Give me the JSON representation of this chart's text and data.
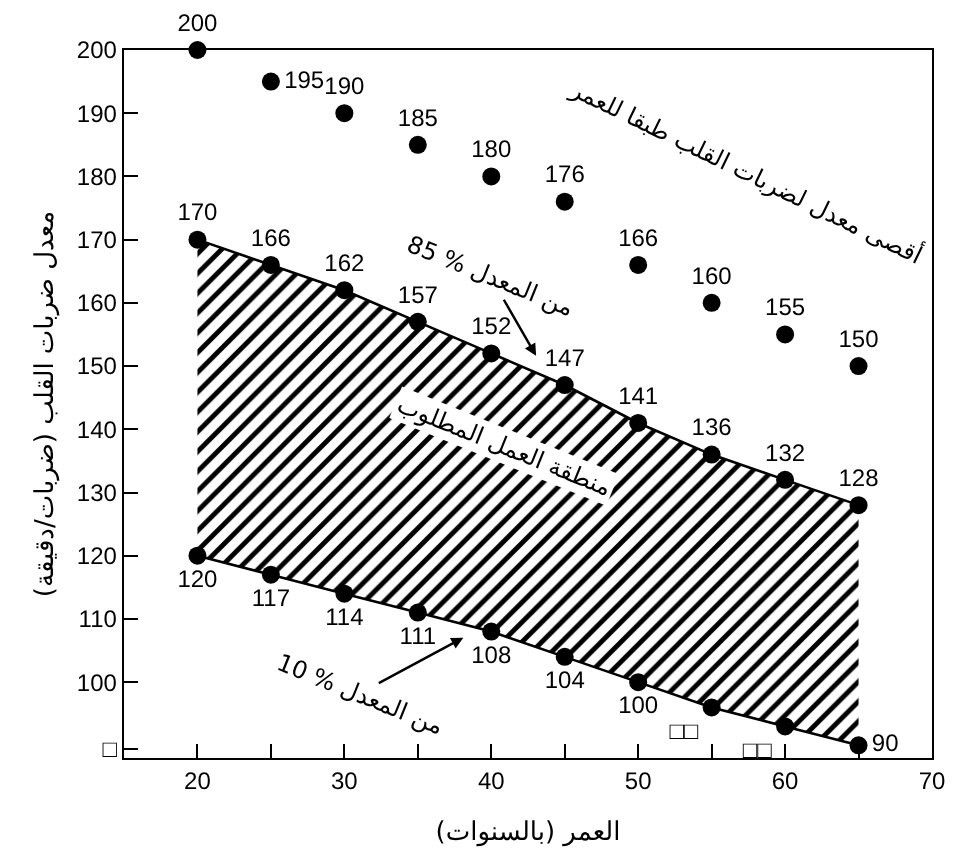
{
  "chart_data": {
    "type": "scatter",
    "xlabel": "العمر (بالسنوات)",
    "ylabel": "معدل ضربات القلب (ضربات/دقيقة)",
    "x": [
      20,
      25,
      30,
      35,
      40,
      45,
      50,
      55,
      60,
      65
    ],
    "series": [
      {
        "color": "#000000",
        "marker": "circle",
        "values": [
          200,
          195,
          190,
          185,
          180,
          176,
          166,
          160,
          155,
          150
        ],
        "value_labels": [
          "200",
          "195",
          "190",
          "185",
          "180",
          "176",
          "166",
          "160",
          "155",
          "150"
        ]
      },
      {
        "type": "line",
        "color": "#000000",
        "marker": "circle",
        "values": [
          120,
          117,
          114,
          111,
          108,
          104,
          100,
          96,
          93,
          90
        ],
        "value_labels": [
          "120",
          "117",
          "114",
          "111",
          "108",
          "104",
          "100",
          "□□",
          "□□",
          "90"
        ]
      },
      {
        "type": "area",
        "color": "#000000",
        "marker": "circle",
        "values": [
          170,
          166,
          162,
          157,
          152,
          147,
          141,
          136,
          132,
          128
        ],
        "value_labels": [
          "170",
          "166",
          "162",
          "157",
          "152",
          "147",
          "141",
          "136",
          "132",
          "128"
        ]
      }
    ],
    "xlim": [
      15,
      70
    ],
    "xticks": [
      20,
      {
        "value": 25,
        "label": null
      },
      30,
      {
        "value": 35,
        "label": null
      },
      40,
      {
        "value": 45,
        "label": null
      },
      50,
      {
        "value": 55,
        "label": null
      },
      60,
      {
        "value": 65,
        "label": null
      },
      70
    ],
    "ylim": [
      88,
      200
    ],
    "yticks": [
      {
        "value": 89.5,
        "label": "□"
      },
      100,
      110,
      120,
      130,
      140,
      150,
      160,
      170,
      180,
      190,
      200
    ],
    "grid": false,
    "annotations": [
      "أقصى معدل لضربات القلب طبقا للعمر",
      "85 % من المعدل",
      "10 % من المعدل",
      "منطقة العمل المطلوب"
    ]
  }
}
